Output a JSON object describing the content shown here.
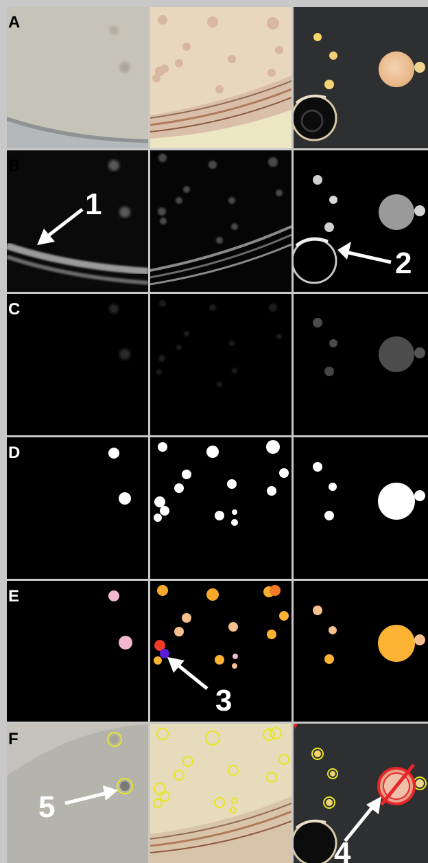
{
  "rows": [
    {
      "letter": "A",
      "stage": "original"
    },
    {
      "letter": "B",
      "stage": "edges"
    },
    {
      "letter": "C",
      "stage": "filtered"
    },
    {
      "letter": "D",
      "stage": "binary-mask"
    },
    {
      "letter": "E",
      "stage": "labelled"
    },
    {
      "letter": "F",
      "stage": "detections"
    }
  ],
  "annotations": [
    "1",
    "2",
    "3",
    "4",
    "5"
  ],
  "colors": {
    "panel_a1": "#c6c4b8",
    "panel_a2": "#e8d7bc",
    "panel_a3": "#2e2f31",
    "mask": "#ffffff",
    "outline": "#e8e61e",
    "reject": "#e8262a",
    "pink": "#f3b8d0",
    "orange": "#fcb233",
    "peach": "#f6c08e",
    "red": "#ee3a26",
    "purple": "#5a1fd6"
  }
}
